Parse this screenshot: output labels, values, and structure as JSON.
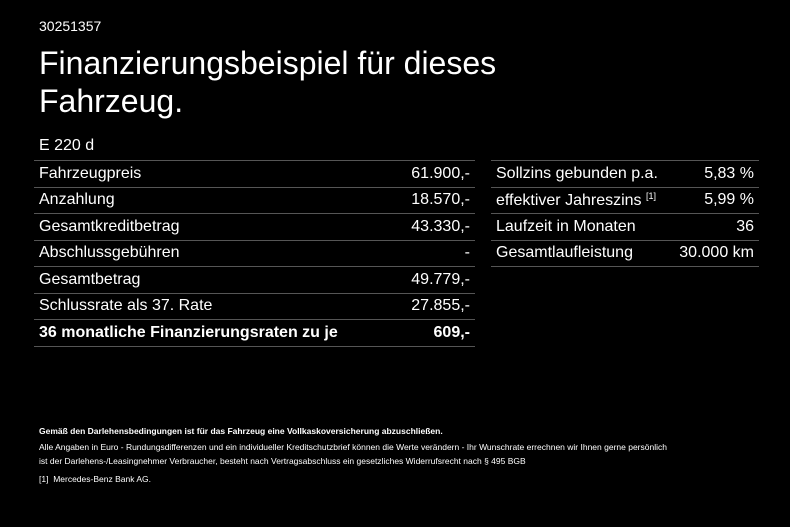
{
  "header": {
    "id": "30251357",
    "title_lines": [
      "Finanzierungsbeispiel für dieses",
      "Fahrzeug."
    ],
    "model": "E 220 d"
  },
  "left_table": {
    "rows": [
      [
        "Fahrzeugpreis",
        "61.900,-"
      ],
      [
        "Anzahlung",
        "18.570,-"
      ],
      [
        "Gesamtkreditbetrag",
        "43.330,-"
      ],
      [
        "Abschlussgebühren",
        "-"
      ],
      [
        "Gesamtbetrag",
        "49.779,-"
      ],
      [
        "Schlussrate als 37. Rate",
        "27.855,-"
      ],
      [
        "36 monatliche Finanzierungsraten zu je",
        "609,-"
      ]
    ]
  },
  "right_table": {
    "rows": [
      {
        "label": "Sollzins gebunden p.a.",
        "value": "5,83 %"
      },
      {
        "label": "effektiver Jahreszins",
        "note": "[1]",
        "value": "5,99 %"
      },
      {
        "label": "Laufzeit in Monaten",
        "value": "36"
      },
      {
        "label": "Gesamtlaufleistung",
        "value": "30.000 km"
      }
    ]
  },
  "footer": {
    "bold": "Gemäß den Darlehensbedingungen ist für das Fahrzeug eine Vollkaskoversicherung abzuschließen.",
    "lines": [
      "Alle Angaben in Euro - Rundungsdifferenzen und ein individueller Kreditschutzbrief können die Werte verändern - Ihr Wunschrate errechnen wir Ihnen gerne persönlich",
      "ist der Darlehens-/Leasingnehmer Verbraucher, besteht nach Vertragsabschluss ein gesetzliches Widerrufsrecht nach § 495 BGB"
    ],
    "note_mark": "[1]",
    "note_text": "Mercedes-Benz Bank AG."
  }
}
